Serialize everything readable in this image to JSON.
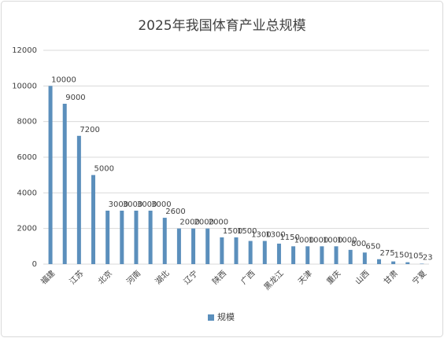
{
  "chart_data": {
    "type": "bar",
    "title": "2025年我国体育产业总规模",
    "categories": [
      "福建",
      null,
      "江苏",
      null,
      "北京",
      null,
      "河南",
      null,
      "湖北",
      null,
      "辽宁",
      null,
      "陕西",
      null,
      "广西",
      null,
      "黑龙江",
      null,
      "天津",
      null,
      "重庆",
      null,
      "山西",
      null,
      "甘肃",
      null,
      "宁夏"
    ],
    "series": [
      {
        "name": "规模",
        "color": "#5b8fbc",
        "values": [
          10000,
          9000,
          7200,
          5000,
          3000,
          3000,
          3000,
          3000,
          2600,
          2000,
          2000,
          2000,
          1500,
          1500,
          1300,
          1300,
          1150,
          1000,
          1000,
          1000,
          1000,
          800,
          650,
          275,
          150,
          105,
          23
        ]
      }
    ],
    "ylim": [
      0,
      12000
    ],
    "yticks": [
      0,
      2000,
      4000,
      6000,
      8000,
      10000,
      12000
    ],
    "grid": true,
    "legend": "bottom"
  }
}
